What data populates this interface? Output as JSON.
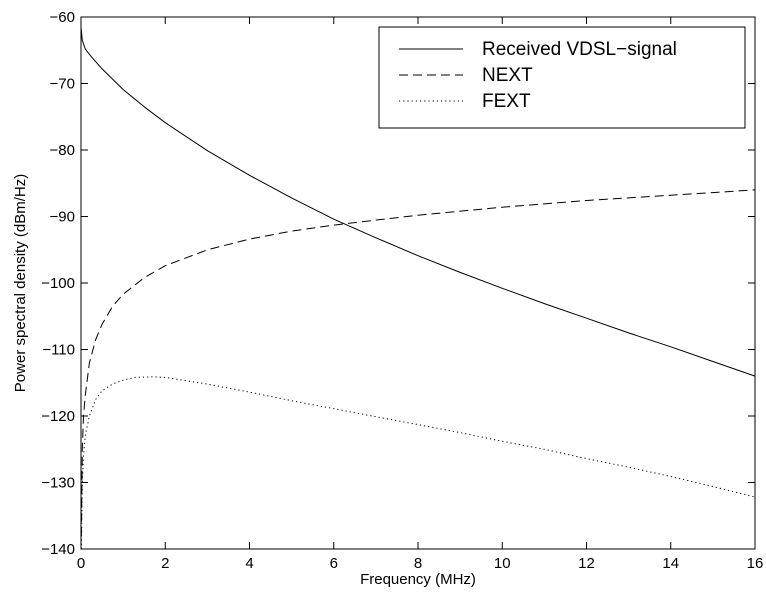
{
  "chart_data": {
    "type": "line",
    "title": "",
    "xlabel": "Frequency (MHz)",
    "ylabel": "Power spectral density (dBm/Hz)",
    "xlim": [
      0,
      16
    ],
    "ylim": [
      -140,
      -60
    ],
    "xticks": [
      0,
      2,
      4,
      6,
      8,
      10,
      12,
      14,
      16
    ],
    "yticks": [
      -140,
      -130,
      -120,
      -110,
      -100,
      -90,
      -80,
      -70,
      -60
    ],
    "grid": false,
    "legend_position": "top-right",
    "series": [
      {
        "name": "Received VDSL−signal",
        "style": "solid",
        "x": [
          0,
          0.03,
          0.1,
          0.25,
          0.5,
          1,
          1.5,
          2,
          3,
          4,
          5,
          6,
          7,
          8,
          9,
          10,
          11,
          12,
          13,
          14,
          15,
          16
        ],
        "y": [
          -61.5,
          -63.5,
          -64.8,
          -66.0,
          -67.8,
          -70.9,
          -73.5,
          -75.9,
          -80.1,
          -83.8,
          -87.2,
          -90.4,
          -93.2,
          -95.9,
          -98.4,
          -100.8,
          -103.1,
          -105.3,
          -107.5,
          -109.6,
          -111.8,
          -114.0
        ]
      },
      {
        "name": "NEXT",
        "style": "dashed",
        "x": [
          0.01,
          0.03,
          0.06,
          0.1,
          0.2,
          0.35,
          0.5,
          0.75,
          1,
          1.5,
          2,
          3,
          4,
          5,
          6,
          8,
          10,
          12,
          14,
          16
        ],
        "y": [
          -138,
          -125,
          -120,
          -117,
          -112,
          -108.5,
          -106.2,
          -103.5,
          -101.7,
          -99.2,
          -97.4,
          -95.0,
          -93.4,
          -92.2,
          -91.3,
          -89.8,
          -88.6,
          -87.6,
          -86.8,
          -86.0
        ]
      },
      {
        "name": "FEXT",
        "style": "dotted",
        "x": [
          0.01,
          0.03,
          0.06,
          0.1,
          0.2,
          0.35,
          0.5,
          0.75,
          1,
          1.3,
          1.7,
          2,
          3,
          4,
          5,
          6,
          7,
          8,
          9,
          10,
          11,
          12,
          13,
          14,
          15,
          16
        ],
        "y": [
          -140,
          -130,
          -126,
          -123,
          -120,
          -117.5,
          -116.2,
          -115.2,
          -114.6,
          -114.2,
          -114.1,
          -114.2,
          -115.2,
          -116.4,
          -117.7,
          -118.9,
          -120.1,
          -121.3,
          -122.5,
          -123.8,
          -125.0,
          -126.4,
          -127.7,
          -129.1,
          -130.6,
          -132.2
        ]
      }
    ]
  }
}
